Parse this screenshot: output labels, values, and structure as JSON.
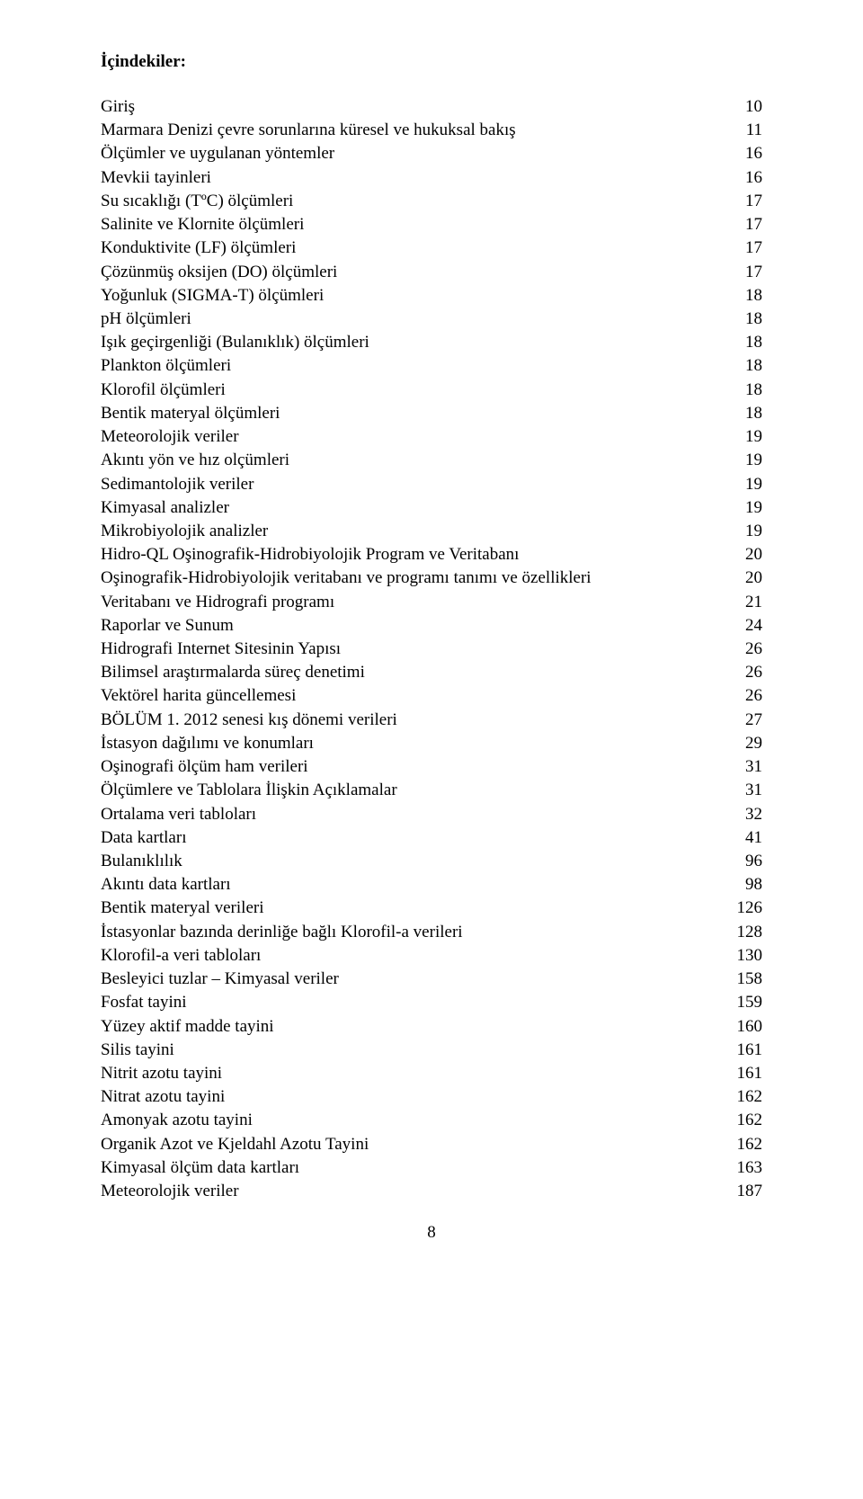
{
  "title": "İçindekiler:",
  "footer_page_number": "8",
  "toc": [
    {
      "label": "Giriş",
      "page": "10"
    },
    {
      "label": "Marmara Denizi çevre sorunlarına küresel ve hukuksal bakış",
      "page": "11"
    },
    {
      "label": "Ölçümler ve uygulanan yöntemler",
      "page": "16"
    },
    {
      "label": "Mevkii tayinleri",
      "page": "16"
    },
    {
      "label": "Su sıcaklığı (TºC) ölçümleri",
      "page": "17"
    },
    {
      "label": "Salinite ve Klornite ölçümleri",
      "page": "17"
    },
    {
      "label": "Konduktivite (LF) ölçümleri",
      "page": "17"
    },
    {
      "label": "Çözünmüş oksijen (DO) ölçümleri",
      "page": "17"
    },
    {
      "label": "Yoğunluk (SIGMA-T) ölçümleri",
      "page": "18"
    },
    {
      "label": "pH ölçümleri",
      "page": "18"
    },
    {
      "label": "Işık geçirgenliği (Bulanıklık) ölçümleri",
      "page": "18"
    },
    {
      "label": "Plankton ölçümleri",
      "page": "18"
    },
    {
      "label": "Klorofil ölçümleri",
      "page": "18"
    },
    {
      "label": "Bentik materyal ölçümleri",
      "page": "18"
    },
    {
      "label": "Meteorolojik veriler",
      "page": "19"
    },
    {
      "label": "Akıntı yön ve hız olçümleri",
      "page": "19"
    },
    {
      "label": "Sedimantolojik veriler",
      "page": "19"
    },
    {
      "label": "Kimyasal analizler",
      "page": "19"
    },
    {
      "label": "Mikrobiyolojik analizler",
      "page": "19"
    },
    {
      "label": "Hidro-QL Oşinografik-Hidrobiyolojik Program ve Veritabanı",
      "page": "20"
    },
    {
      "label": "Oşinografik-Hidrobiyolojik veritabanı ve programı tanımı ve özellikleri",
      "page": "20"
    },
    {
      "label": "Veritabanı ve Hidrografi programı",
      "page": "21"
    },
    {
      "label": "Raporlar ve Sunum",
      "page": "24"
    },
    {
      "label": "Hidrografi Internet Sitesinin Yapısı",
      "page": "26"
    },
    {
      "label": "Bilimsel araştırmalarda süreç denetimi",
      "page": "26"
    },
    {
      "label": "Vektörel harita güncellemesi",
      "page": "26"
    },
    {
      "label": "BÖLÜM 1. 2012 senesi kış dönemi verileri",
      "page": "27"
    },
    {
      "label": "İstasyon dağılımı ve konumları",
      "page": "29"
    },
    {
      "label": "Oşinografi ölçüm ham verileri",
      "page": "31"
    },
    {
      "label": "Ölçümlere ve Tablolara İlişkin Açıklamalar",
      "page": "31"
    },
    {
      "label": "Ortalama veri tabloları",
      "page": "32"
    },
    {
      "label": "Data kartları",
      "page": "41"
    },
    {
      "label": "Bulanıklılık",
      "page": "96"
    },
    {
      "label": "Akıntı data kartları",
      "page": "98"
    },
    {
      "label": "Bentik materyal verileri",
      "page": "126"
    },
    {
      "label": "İstasyonlar bazında derinliğe bağlı Klorofil-a verileri",
      "page": "128"
    },
    {
      "label": "Klorofil-a veri tabloları",
      "page": "130"
    },
    {
      "label": "Besleyici tuzlar – Kimyasal veriler",
      "page": "158"
    },
    {
      "label": "Fosfat tayini",
      "page": "159"
    },
    {
      "label": "Yüzey aktif madde tayini",
      "page": "160"
    },
    {
      "label": "Silis tayini",
      "page": "161"
    },
    {
      "label": "Nitrit azotu tayini",
      "page": "161"
    },
    {
      "label": "Nitrat azotu tayini",
      "page": "162"
    },
    {
      "label": "Amonyak azotu tayini",
      "page": "162"
    },
    {
      "label": "Organik Azot ve Kjeldahl Azotu Tayini",
      "page": "162"
    },
    {
      "label": "Kimyasal ölçüm data kartları",
      "page": "163"
    },
    {
      "label": "Meteorolojik veriler",
      "page": "187"
    }
  ]
}
